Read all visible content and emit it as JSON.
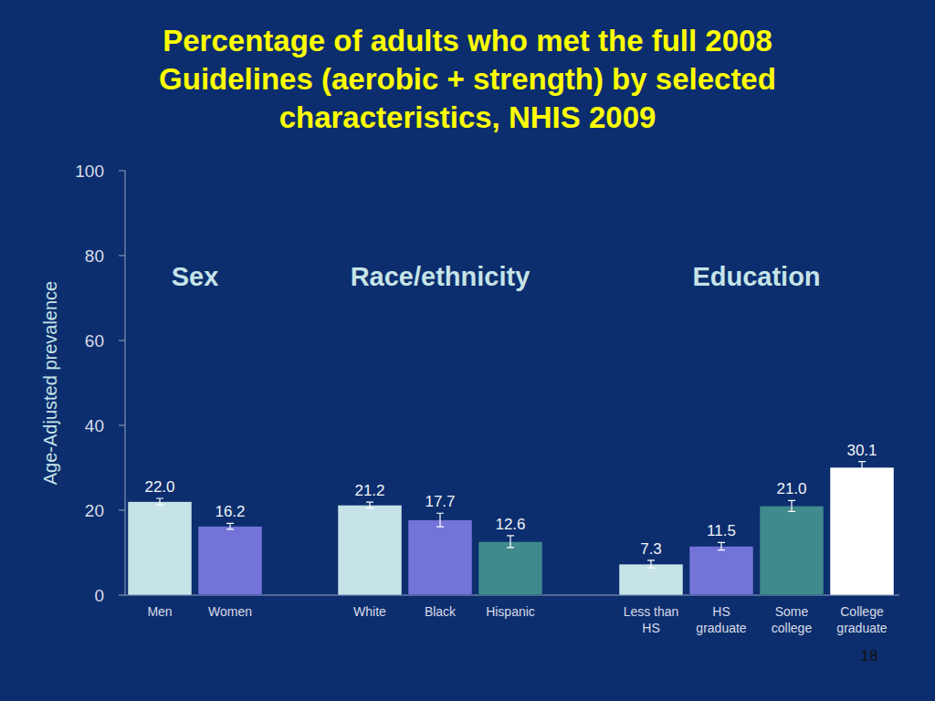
{
  "title": "Percentage of adults who met the full 2008 Guidelines (aerobic + strength) by selected characteristics, NHIS 2009",
  "page_number": "18",
  "chart_data": [
    {
      "type": "bar",
      "title": "Sex",
      "y_label": "Age-Adjusted prevalence",
      "categories": [
        "Men",
        "Women"
      ],
      "values": [
        22.0,
        16.2
      ],
      "value_labels": [
        "22.0",
        "16.2"
      ],
      "errors": [
        0.8,
        0.7
      ],
      "colors": [
        "#c6e4e8",
        "#7373d8"
      ],
      "ylim": [
        0,
        100
      ],
      "yticks": [
        0,
        20,
        40,
        60,
        80,
        100
      ],
      "data_labels": true
    },
    {
      "type": "bar",
      "title": "Race/ethnicity",
      "categories": [
        "White",
        "Black",
        "Hispanic"
      ],
      "values": [
        21.2,
        17.7,
        12.6
      ],
      "value_labels": [
        "21.2",
        "17.7",
        "12.6"
      ],
      "errors": [
        0.7,
        1.6,
        1.4
      ],
      "colors": [
        "#c6e4e8",
        "#7373d8",
        "#3f8a8c"
      ],
      "ylim": [
        0,
        100
      ],
      "data_labels": true
    },
    {
      "type": "bar",
      "title": "Education",
      "categories": [
        "Less than HS",
        "HS graduate",
        "Some college",
        "College graduate"
      ],
      "values": [
        7.3,
        11.5,
        21.0,
        30.1
      ],
      "value_labels": [
        "7.3",
        "11.5",
        "21.0",
        "30.1"
      ],
      "errors": [
        0.9,
        0.9,
        1.3,
        1.4
      ],
      "colors": [
        "#c6e4e8",
        "#7373d8",
        "#3f8a8c",
        "#ffffff"
      ],
      "ylim": [
        0,
        100
      ],
      "data_labels": true
    }
  ]
}
